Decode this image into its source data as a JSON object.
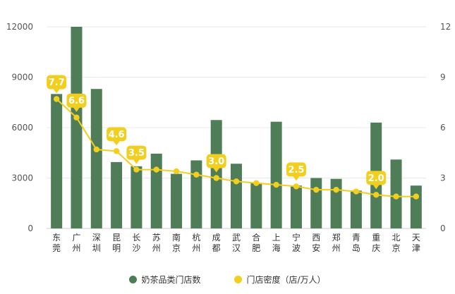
{
  "chart_data": {
    "type": "bar",
    "categories": [
      "东莞",
      "广州",
      "深圳",
      "昆明",
      "长沙",
      "苏州",
      "南京",
      "杭州",
      "成都",
      "武汉",
      "合肥",
      "上海",
      "宁波",
      "西安",
      "郑州",
      "青岛",
      "重庆",
      "北京",
      "天津"
    ],
    "category_chars": [
      [
        "东",
        "莞"
      ],
      [
        "广",
        "州"
      ],
      [
        "深",
        "圳"
      ],
      [
        "昆",
        "明"
      ],
      [
        "长",
        "沙"
      ],
      [
        "苏",
        "州"
      ],
      [
        "南",
        "京"
      ],
      [
        "杭",
        "州"
      ],
      [
        "成",
        "都"
      ],
      [
        "武",
        "汉"
      ],
      [
        "合",
        "肥"
      ],
      [
        "上",
        "海"
      ],
      [
        "宁",
        "波"
      ],
      [
        "西",
        "安"
      ],
      [
        "郑",
        "州"
      ],
      [
        "青",
        "岛"
      ],
      [
        "重",
        "庆"
      ],
      [
        "北",
        "京"
      ],
      [
        "天",
        "津"
      ]
    ],
    "series": [
      {
        "name": "奶茶品类门店数",
        "type": "bar",
        "axis": "left",
        "color": "#4e7d57",
        "values": [
          8000,
          12000,
          8300,
          3950,
          3700,
          4450,
          3250,
          4050,
          6450,
          3850,
          2700,
          6350,
          2550,
          3000,
          2950,
          2250,
          6300,
          4100,
          2550
        ]
      },
      {
        "name": "门店密度（店/万人）",
        "type": "line",
        "axis": "right",
        "color": "#f2cf1f",
        "values": [
          7.7,
          6.6,
          4.7,
          4.6,
          3.5,
          3.5,
          3.4,
          3.2,
          3.0,
          2.8,
          2.7,
          2.6,
          2.5,
          2.3,
          2.3,
          2.2,
          2.0,
          1.9,
          1.9
        ]
      }
    ],
    "y_left": {
      "ylim": [
        0,
        12000
      ],
      "ticks": [
        "0",
        "3000",
        "6000",
        "9000",
        "12000"
      ]
    },
    "y_right": {
      "ylim": [
        0,
        12
      ],
      "ticks": [
        "0",
        "3",
        "6",
        "9",
        "12"
      ]
    },
    "data_labels": [
      {
        "index": 0,
        "text": "7.7"
      },
      {
        "index": 1,
        "text": "6.6"
      },
      {
        "index": 3,
        "text": "4.6"
      },
      {
        "index": 4,
        "text": "3.5"
      },
      {
        "index": 8,
        "text": "3.0"
      },
      {
        "index": 12,
        "text": "2.5"
      },
      {
        "index": 16,
        "text": "2.0"
      }
    ],
    "grid": true,
    "legend_position": "bottom"
  }
}
